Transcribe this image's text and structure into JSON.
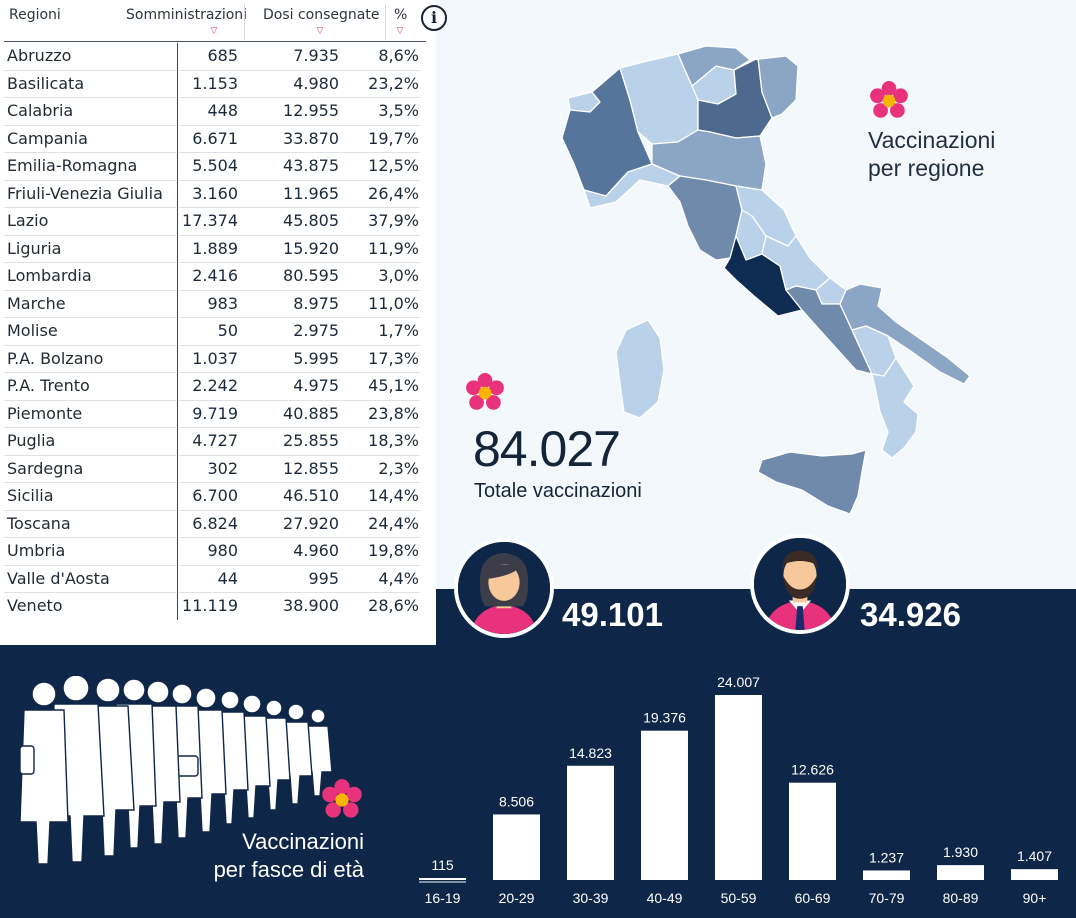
{
  "table": {
    "headers": {
      "region": "Regioni",
      "administrations": "Somministrazioni",
      "doses": "Dosi consegnate",
      "percent": "%"
    },
    "sort_glyph": "▽",
    "info_glyph": "i",
    "rows": [
      {
        "region": "Abruzzo",
        "administrations": "685",
        "doses": "7.935",
        "percent": "8,6%"
      },
      {
        "region": "Basilicata",
        "administrations": "1.153",
        "doses": "4.980",
        "percent": "23,2%"
      },
      {
        "region": "Calabria",
        "administrations": "448",
        "doses": "12.955",
        "percent": "3,5%"
      },
      {
        "region": "Campania",
        "administrations": "6.671",
        "doses": "33.870",
        "percent": "19,7%"
      },
      {
        "region": "Emilia-Romagna",
        "administrations": "5.504",
        "doses": "43.875",
        "percent": "12,5%"
      },
      {
        "region": "Friuli-Venezia Giulia",
        "administrations": "3.160",
        "doses": "11.965",
        "percent": "26,4%"
      },
      {
        "region": "Lazio",
        "administrations": "17.374",
        "doses": "45.805",
        "percent": "37,9%"
      },
      {
        "region": "Liguria",
        "administrations": "1.889",
        "doses": "15.920",
        "percent": "11,9%"
      },
      {
        "region": "Lombardia",
        "administrations": "2.416",
        "doses": "80.595",
        "percent": "3,0%"
      },
      {
        "region": "Marche",
        "administrations": "983",
        "doses": "8.975",
        "percent": "11,0%"
      },
      {
        "region": "Molise",
        "administrations": "50",
        "doses": "2.975",
        "percent": "1,7%"
      },
      {
        "region": "P.A. Bolzano",
        "administrations": "1.037",
        "doses": "5.995",
        "percent": "17,3%"
      },
      {
        "region": "P.A. Trento",
        "administrations": "2.242",
        "doses": "4.975",
        "percent": "45,1%"
      },
      {
        "region": "Piemonte",
        "administrations": "9.719",
        "doses": "40.885",
        "percent": "23,8%"
      },
      {
        "region": "Puglia",
        "administrations": "4.727",
        "doses": "25.855",
        "percent": "18,3%"
      },
      {
        "region": "Sardegna",
        "administrations": "302",
        "doses": "12.855",
        "percent": "2,3%"
      },
      {
        "region": "Sicilia",
        "administrations": "6.700",
        "doses": "46.510",
        "percent": "14,4%"
      },
      {
        "region": "Toscana",
        "administrations": "6.824",
        "doses": "27.920",
        "percent": "24,4%"
      },
      {
        "region": "Umbria",
        "administrations": "980",
        "doses": "4.960",
        "percent": "19,8%"
      },
      {
        "region": "Valle d'Aosta",
        "administrations": "44",
        "doses": "995",
        "percent": "4,4%"
      },
      {
        "region": "Veneto",
        "administrations": "11.119",
        "doses": "38.900",
        "percent": "28,6%"
      }
    ]
  },
  "map": {
    "title_line1": "Vaccinazioni",
    "title_line2": "per regione",
    "icon": "flower-icon"
  },
  "totals": {
    "value": "84.027",
    "label": "Totale vaccinazioni"
  },
  "gender": {
    "women": {
      "icon": "woman-avatar-icon",
      "value": "49.101"
    },
    "men": {
      "icon": "man-avatar-icon",
      "value": "34.926"
    }
  },
  "age": {
    "title_line1": "Vaccinazioni",
    "title_line2": "per fasce di età",
    "icon": "crowd-icon"
  },
  "colors": {
    "navy": "#0e2648",
    "flower_pink": "#e8337c",
    "flower_center": "#f7b500",
    "map_dark": "#0e2b52",
    "map_mid": "#56759a",
    "map_light": "#b9d2e9"
  },
  "chart_data": {
    "type": "bar",
    "categories": [
      "16-19",
      "20-29",
      "30-39",
      "40-49",
      "50-59",
      "60-69",
      "70-79",
      "80-89",
      "90+"
    ],
    "values": [
      115,
      8506,
      14823,
      19376,
      24007,
      12626,
      1237,
      1930,
      1407
    ],
    "labels": [
      "115",
      "8.506",
      "14.823",
      "19.376",
      "24.007",
      "12.626",
      "1.237",
      "1.930",
      "1.407"
    ],
    "title": "",
    "xlabel": "",
    "ylabel": "",
    "ylim": [
      0,
      24007
    ],
    "grid": false,
    "legend": "none"
  }
}
